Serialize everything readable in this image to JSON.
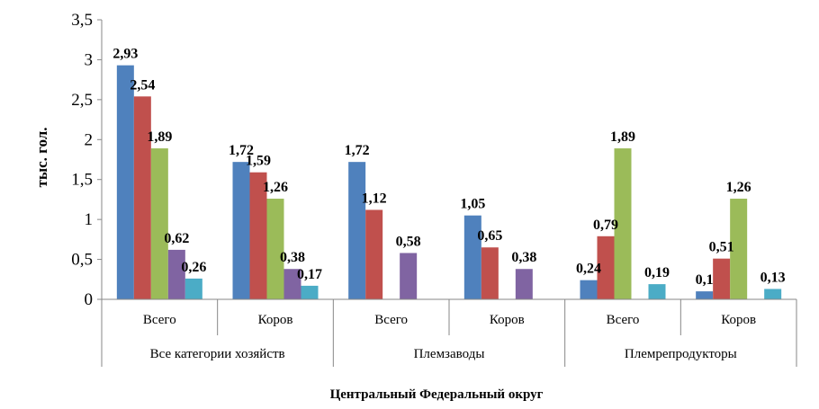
{
  "chart_data": {
    "type": "bar",
    "ylabel": "тыс. гол.",
    "xlabel": "Центральный  Федеральный  округ",
    "ylim": [
      0,
      3.5
    ],
    "yticks": [
      "0",
      "0,5",
      "1",
      "1,5",
      "2",
      "2,5",
      "3",
      "3,5"
    ],
    "grid": false,
    "legend": "none",
    "groups": [
      {
        "label": "Все категории хозяйств",
        "categories": [
          "Всего",
          "Коров"
        ]
      },
      {
        "label": "Племзаводы",
        "categories": [
          "Всего",
          "Коров"
        ]
      },
      {
        "label": "Племрепродукторы",
        "categories": [
          "Всего",
          "Коров"
        ]
      }
    ],
    "categories": [
      "Всего",
      "Коров",
      "Всего",
      "Коров",
      "Всего",
      "Коров"
    ],
    "series": [
      {
        "color": "#4f81bd",
        "values": [
          2.93,
          1.72,
          1.72,
          1.05,
          0.24,
          0.1
        ],
        "labels": [
          "2,93",
          "1,72",
          "1,72",
          "1,05",
          "0,24",
          "0,1"
        ]
      },
      {
        "color": "#c0504d",
        "values": [
          2.54,
          1.59,
          1.12,
          0.65,
          0.79,
          0.51
        ],
        "labels": [
          "2,54",
          "1,59",
          "1,12",
          "0,65",
          "0,79",
          "0,51"
        ]
      },
      {
        "color": "#9bbb59",
        "values": [
          1.89,
          1.26,
          null,
          null,
          1.89,
          1.26
        ],
        "labels": [
          "1,89",
          "1,26",
          "",
          "",
          "1,89",
          "1,26"
        ]
      },
      {
        "color": "#8064a2",
        "values": [
          0.62,
          0.38,
          0.58,
          0.38,
          null,
          null
        ],
        "labels": [
          "0,62",
          "0,38",
          "0,58",
          "0,38",
          "",
          ""
        ]
      },
      {
        "color": "#4bacc6",
        "values": [
          0.26,
          0.17,
          null,
          null,
          0.19,
          0.13
        ],
        "labels": [
          "0,26",
          "0,17",
          "",
          "",
          "0,19",
          "0,13"
        ]
      }
    ]
  }
}
